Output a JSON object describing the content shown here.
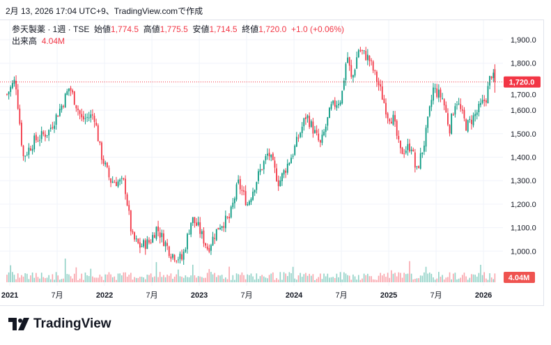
{
  "caption": "2月 13, 2026 17:04 UTC+9、TradingView.comで作成",
  "legend": {
    "symbol": "参天製薬 · 1週 · TSE",
    "open_label": "始値",
    "open": "1,774.5",
    "high_label": "高値",
    "high": "1,775.5",
    "low_label": "安値",
    "low": "1,714.5",
    "close_label": "終値",
    "close": "1,720.0",
    "change": "+1.0 (+0.06%)",
    "volume_label": "出来高",
    "volume": "4.04M"
  },
  "logo_text": "TradingView",
  "colors": {
    "up": "#089981",
    "down": "#f23645",
    "grid": "#f0f3fa"
  },
  "chart_data": {
    "type": "candlestick",
    "title": "参天製薬 · 1週 · TSE",
    "ylim": [
      930,
      1960
    ],
    "y_ticks": [
      "1,000.0",
      "1,100.0",
      "1,200.0",
      "1,300.0",
      "1,400.0",
      "1,500.0",
      "1,600.0",
      "1,700.0",
      "1,800.0",
      "1,900.0"
    ],
    "y_tick_values": [
      1000,
      1100,
      1200,
      1300,
      1400,
      1500,
      1600,
      1700,
      1800,
      1900
    ],
    "x_ticks": [
      {
        "t": 2021.0,
        "label": "2021"
      },
      {
        "t": 2021.5,
        "label": "7月"
      },
      {
        "t": 2022.0,
        "label": "2022"
      },
      {
        "t": 2022.5,
        "label": "7月"
      },
      {
        "t": 2023.0,
        "label": "2023"
      },
      {
        "t": 2023.5,
        "label": "7月"
      },
      {
        "t": 2024.0,
        "label": "2024"
      },
      {
        "t": 2024.5,
        "label": "7月"
      },
      {
        "t": 2025.0,
        "label": "2025"
      },
      {
        "t": 2025.5,
        "label": "7月"
      },
      {
        "t": 2026.0,
        "label": "2026"
      }
    ],
    "xlim": [
      2020.94,
      2026.35
    ],
    "last_price": 1720.0,
    "last_price_label": "1,720.0",
    "last_volume_label": "4.04M",
    "last_candle": {
      "open": 1774.5,
      "high": 1775.5,
      "low": 1714.5,
      "close": 1720.0
    },
    "weekly_close_anchors": [
      [
        2020.97,
        1668
      ],
      [
        2021.06,
        1730
      ],
      [
        2021.14,
        1400
      ],
      [
        2021.26,
        1470
      ],
      [
        2021.41,
        1510
      ],
      [
        2021.56,
        1630
      ],
      [
        2021.63,
        1700
      ],
      [
        2021.76,
        1560
      ],
      [
        2021.89,
        1580
      ],
      [
        2021.96,
        1416
      ],
      [
        2022.06,
        1300
      ],
      [
        2022.21,
        1290
      ],
      [
        2022.29,
        1060
      ],
      [
        2022.37,
        1020
      ],
      [
        2022.48,
        1040
      ],
      [
        2022.55,
        1100
      ],
      [
        2022.7,
        990
      ],
      [
        2022.82,
        965
      ],
      [
        2022.92,
        1140
      ],
      [
        2022.99,
        1100
      ],
      [
        2023.09,
        1010
      ],
      [
        2023.21,
        1110
      ],
      [
        2023.32,
        1140
      ],
      [
        2023.41,
        1290
      ],
      [
        2023.51,
        1200
      ],
      [
        2023.63,
        1330
      ],
      [
        2023.73,
        1420
      ],
      [
        2023.84,
        1290
      ],
      [
        2023.99,
        1420
      ],
      [
        2024.13,
        1580
      ],
      [
        2024.28,
        1450
      ],
      [
        2024.39,
        1610
      ],
      [
        2024.5,
        1650
      ],
      [
        2024.56,
        1840
      ],
      [
        2024.61,
        1720
      ],
      [
        2024.68,
        1860
      ],
      [
        2024.79,
        1820
      ],
      [
        2024.9,
        1700
      ],
      [
        2024.99,
        1580
      ],
      [
        2025.05,
        1560
      ],
      [
        2025.12,
        1420
      ],
      [
        2025.24,
        1450
      ],
      [
        2025.29,
        1330
      ],
      [
        2025.38,
        1470
      ],
      [
        2025.47,
        1690
      ],
      [
        2025.57,
        1650
      ],
      [
        2025.64,
        1520
      ],
      [
        2025.71,
        1650
      ],
      [
        2025.82,
        1530
      ],
      [
        2025.93,
        1590
      ],
      [
        2026.03,
        1655
      ],
      [
        2026.08,
        1760
      ],
      [
        2026.12,
        1720
      ]
    ]
  }
}
